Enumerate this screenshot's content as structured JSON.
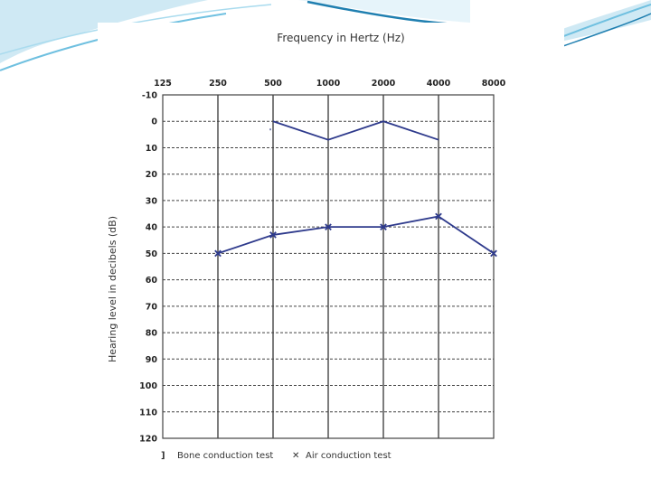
{
  "colors": {
    "series": "#2e3a8c",
    "grid": "#444444",
    "slide_accent": "#6fc0e0",
    "slide_accent_dark": "#1f7fb0"
  },
  "chart_data": {
    "type": "line",
    "title": "Frequency in Hertz (Hz)",
    "xlabel": "Frequency in Hertz (Hz)",
    "ylabel": "Hearing level in decibels (dB)",
    "x": [
      125,
      250,
      500,
      1000,
      2000,
      4000,
      8000
    ],
    "x_tick_labels": [
      "125",
      "250",
      "500",
      "1000",
      "2000",
      "4000",
      "8000"
    ],
    "x_axis_position": "top",
    "y_ticks": [
      -10,
      0,
      10,
      20,
      30,
      40,
      50,
      60,
      70,
      80,
      90,
      100,
      110,
      120
    ],
    "y_tick_labels": [
      "-10",
      "0",
      "10",
      "20",
      "30",
      "40",
      "50",
      "60",
      "70",
      "80",
      "90",
      "100",
      "110",
      "120"
    ],
    "ylim": [
      -10,
      120
    ],
    "y_inverted": true,
    "grid": true,
    "legend_placement": "bottom",
    "series": [
      {
        "name": "Bone conduction test",
        "symbol": "]",
        "x": [
          500,
          1000,
          2000,
          4000
        ],
        "y": [
          0,
          7,
          0,
          7
        ]
      },
      {
        "name": "Air conduction test",
        "symbol": "✕",
        "x": [
          250,
          500,
          1000,
          2000,
          4000,
          8000
        ],
        "y": [
          50,
          43,
          40,
          40,
          36,
          50
        ]
      }
    ]
  }
}
